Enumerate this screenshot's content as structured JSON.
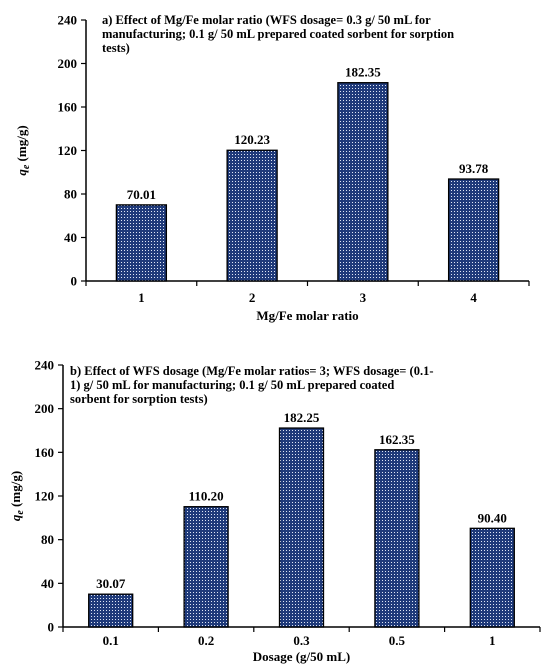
{
  "colors": {
    "bar_fill": "#1f3a7a",
    "bar_dot": "#dfe6f5",
    "bar_edge": "#000000",
    "axis": "#000000"
  },
  "chart_data": [
    {
      "type": "bar",
      "title_lines": [
        "a) Effect of Mg/Fe molar ratio (WFS dosage= 0.3 g/ 50 mL for",
        "manufacturing; 0.1 g/ 50 mL prepared coated sorbent for sorption",
        "tests)"
      ],
      "categories": [
        "1",
        "2",
        "3",
        "4"
      ],
      "values": [
        70.01,
        120.23,
        182.35,
        93.78
      ],
      "value_labels": [
        "70.01",
        "120.23",
        "182.35",
        "93.78"
      ],
      "xlabel": "Mg/Fe molar ratio",
      "ylabel_main": "q",
      "ylabel_sub": "e",
      "ylabel_unit": "(mg/g)",
      "ylim": [
        0,
        240
      ],
      "yticks": [
        0,
        40,
        80,
        120,
        160,
        200,
        240
      ],
      "grid": false,
      "legend": "none"
    },
    {
      "type": "bar",
      "title_lines": [
        "b) Effect of WFS dosage (Mg/Fe molar ratios= 3; WFS dosage= (0.1-",
        "1) g/ 50 mL for manufacturing; 0.1 g/ 50 mL prepared coated",
        "sorbent for sorption tests)"
      ],
      "categories": [
        "0.1",
        "0.2",
        "0.3",
        "0.5",
        "1"
      ],
      "values": [
        30.07,
        110.2,
        182.25,
        162.35,
        90.4
      ],
      "value_labels": [
        "30.07",
        "110.20",
        "182.25",
        "162.35",
        "90.40"
      ],
      "xlabel": "Dosage (g/50 mL)",
      "ylabel_main": "q",
      "ylabel_sub": "e",
      "ylabel_unit": "(mg/g)",
      "ylim": [
        0,
        240
      ],
      "yticks": [
        0,
        40,
        80,
        120,
        160,
        200,
        240
      ],
      "grid": false,
      "legend": "none"
    }
  ]
}
